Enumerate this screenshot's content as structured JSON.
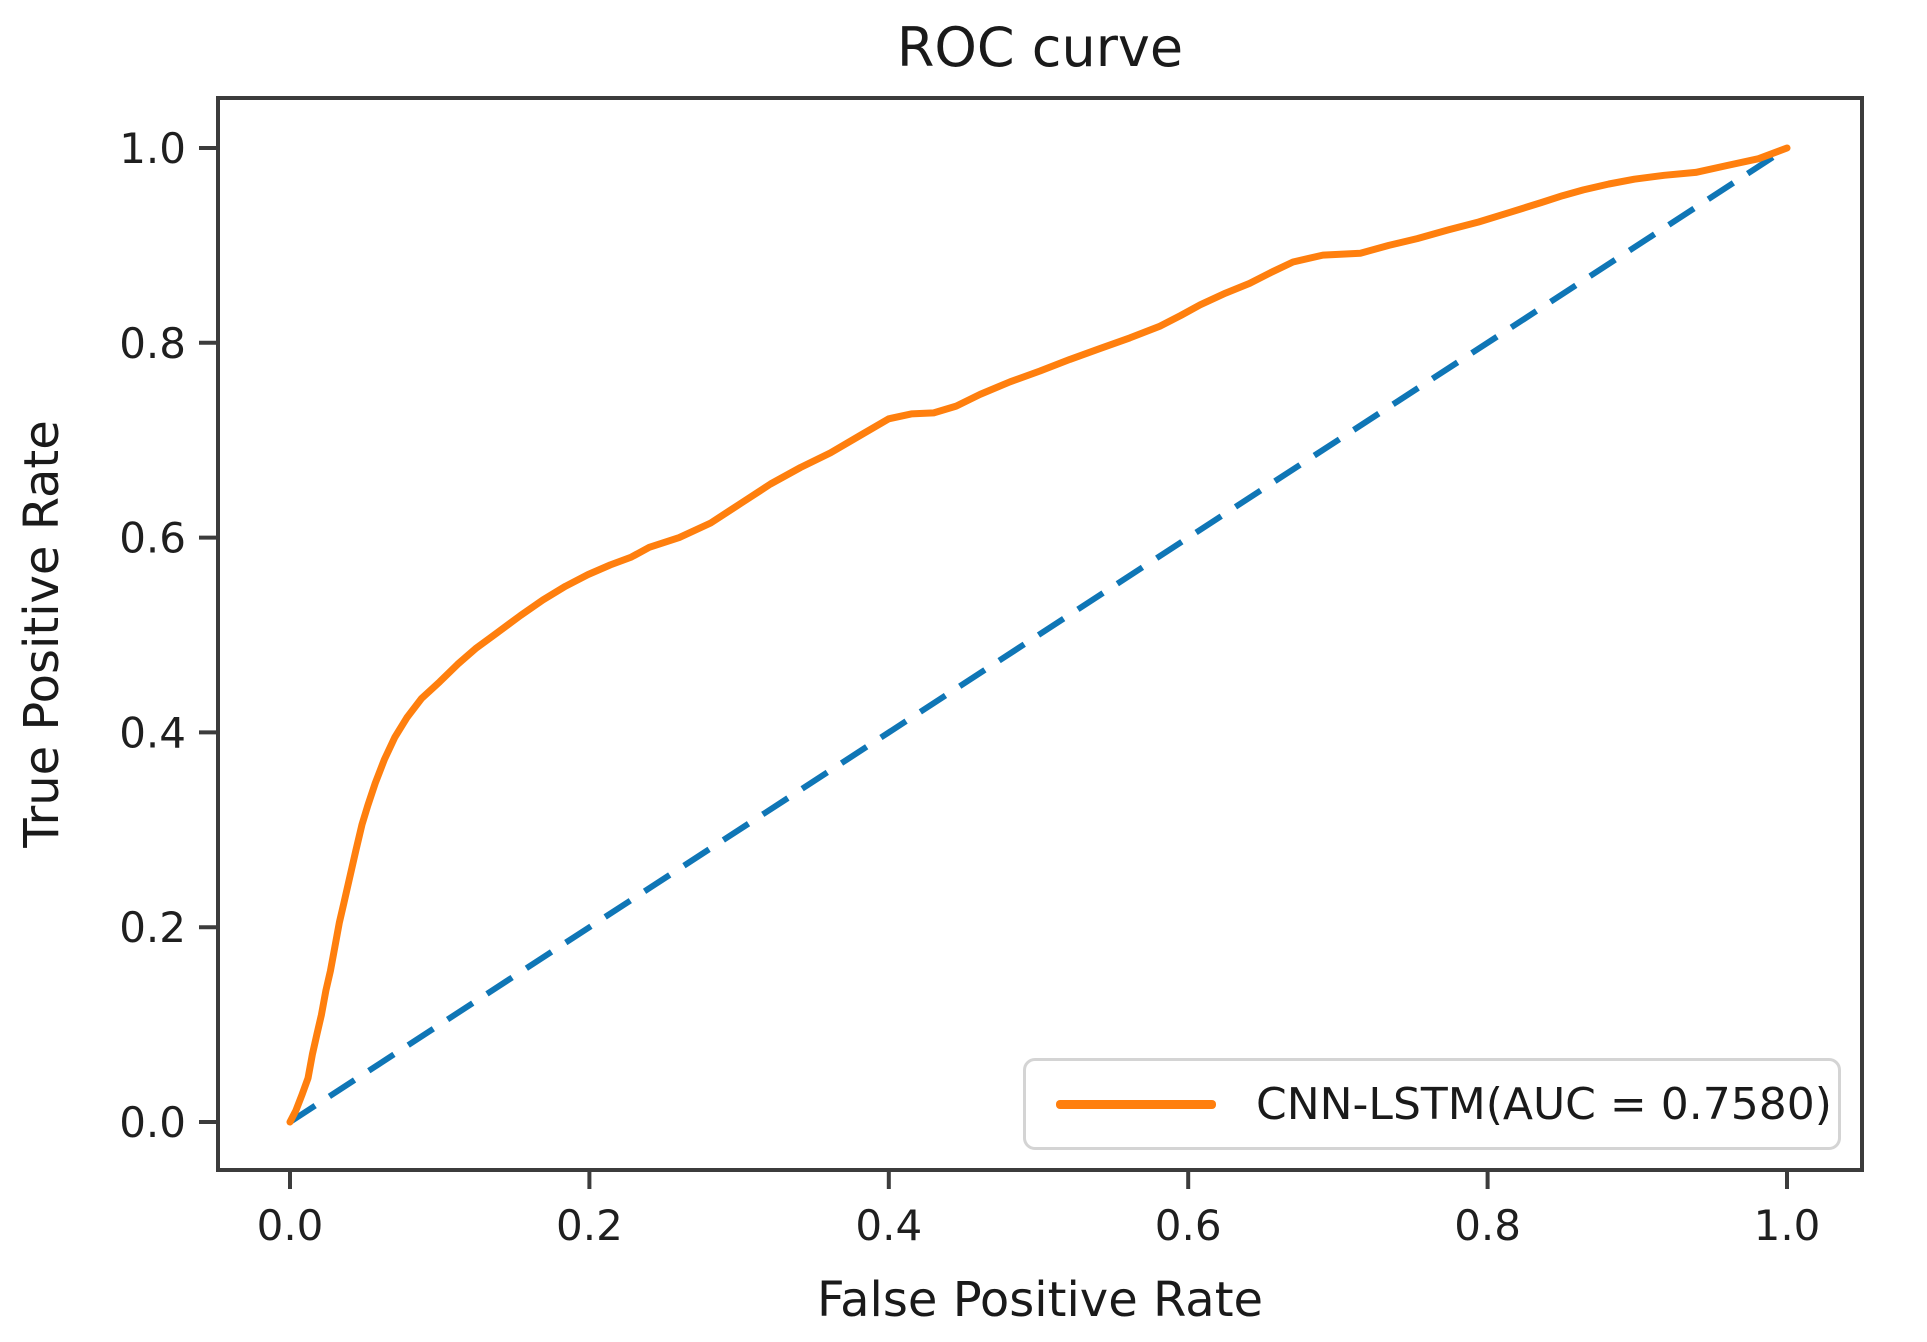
{
  "figure": {
    "title": "ROC curve",
    "xlabel": "False Positive Rate",
    "ylabel": "True Positive Rate",
    "legend": {
      "label": "CNN-LSTM(AUC = 0.7580)"
    },
    "colors": {
      "roc_line": "#ff7f0e",
      "diagonal_line": "#0f76b6",
      "spine": "#3c3c3c",
      "text": "#1a1a1a",
      "legend_border": "#d4d4d4"
    }
  },
  "chart_data": {
    "type": "line",
    "title": "ROC curve",
    "xlabel": "False Positive Rate",
    "ylabel": "True Positive Rate",
    "xlim": [
      -0.05,
      1.05
    ],
    "ylim": [
      -0.05,
      1.05
    ],
    "grid": false,
    "legend_position": "lower right",
    "x_ticks": [
      0.0,
      0.2,
      0.4,
      0.6,
      0.8,
      1.0
    ],
    "y_ticks": [
      0.0,
      0.2,
      0.4,
      0.6,
      0.8,
      1.0
    ],
    "xtick_labels": [
      "0.0",
      "0.2",
      "0.4",
      "0.6",
      "0.8",
      "1.0"
    ],
    "ytick_labels": [
      "0.0",
      "0.2",
      "0.4",
      "0.6",
      "0.8",
      "1.0"
    ],
    "series": [
      {
        "name": "CNN-LSTM",
        "auc": 0.758,
        "color": "#ff7f0e",
        "style": "solid",
        "points": [
          [
            0.0,
            0.0
          ],
          [
            0.004,
            0.012
          ],
          [
            0.008,
            0.028
          ],
          [
            0.012,
            0.045
          ],
          [
            0.015,
            0.07
          ],
          [
            0.018,
            0.09
          ],
          [
            0.021,
            0.11
          ],
          [
            0.024,
            0.135
          ],
          [
            0.027,
            0.155
          ],
          [
            0.03,
            0.18
          ],
          [
            0.033,
            0.205
          ],
          [
            0.036,
            0.225
          ],
          [
            0.04,
            0.252
          ],
          [
            0.044,
            0.279
          ],
          [
            0.048,
            0.305
          ],
          [
            0.052,
            0.325
          ],
          [
            0.057,
            0.348
          ],
          [
            0.063,
            0.372
          ],
          [
            0.07,
            0.395
          ],
          [
            0.078,
            0.415
          ],
          [
            0.088,
            0.435
          ],
          [
            0.1,
            0.452
          ],
          [
            0.112,
            0.47
          ],
          [
            0.124,
            0.486
          ],
          [
            0.139,
            0.503
          ],
          [
            0.154,
            0.52
          ],
          [
            0.169,
            0.536
          ],
          [
            0.184,
            0.55
          ],
          [
            0.199,
            0.562
          ],
          [
            0.214,
            0.572
          ],
          [
            0.228,
            0.58
          ],
          [
            0.24,
            0.59
          ],
          [
            0.26,
            0.6
          ],
          [
            0.281,
            0.615
          ],
          [
            0.301,
            0.635
          ],
          [
            0.321,
            0.655
          ],
          [
            0.341,
            0.672
          ],
          [
            0.361,
            0.687
          ],
          [
            0.381,
            0.705
          ],
          [
            0.4,
            0.722
          ],
          [
            0.415,
            0.727
          ],
          [
            0.43,
            0.728
          ],
          [
            0.445,
            0.735
          ],
          [
            0.461,
            0.747
          ],
          [
            0.481,
            0.76
          ],
          [
            0.501,
            0.771
          ],
          [
            0.521,
            0.783
          ],
          [
            0.541,
            0.794
          ],
          [
            0.561,
            0.805
          ],
          [
            0.581,
            0.817
          ],
          [
            0.595,
            0.828
          ],
          [
            0.608,
            0.839
          ],
          [
            0.625,
            0.851
          ],
          [
            0.641,
            0.861
          ],
          [
            0.655,
            0.872
          ],
          [
            0.67,
            0.883
          ],
          [
            0.69,
            0.89
          ],
          [
            0.715,
            0.892
          ],
          [
            0.734,
            0.9
          ],
          [
            0.753,
            0.907
          ],
          [
            0.774,
            0.916
          ],
          [
            0.794,
            0.924
          ],
          [
            0.815,
            0.934
          ],
          [
            0.836,
            0.944
          ],
          [
            0.85,
            0.951
          ],
          [
            0.864,
            0.957
          ],
          [
            0.881,
            0.963
          ],
          [
            0.898,
            0.968
          ],
          [
            0.918,
            0.972
          ],
          [
            0.939,
            0.975
          ],
          [
            0.96,
            0.982
          ],
          [
            0.981,
            0.989
          ],
          [
            1.0,
            1.0
          ]
        ]
      },
      {
        "name": "chance-diagonal",
        "color": "#0f76b6",
        "style": "dashed",
        "points": [
          [
            0.0,
            0.0
          ],
          [
            1.0,
            1.0
          ]
        ]
      }
    ]
  }
}
